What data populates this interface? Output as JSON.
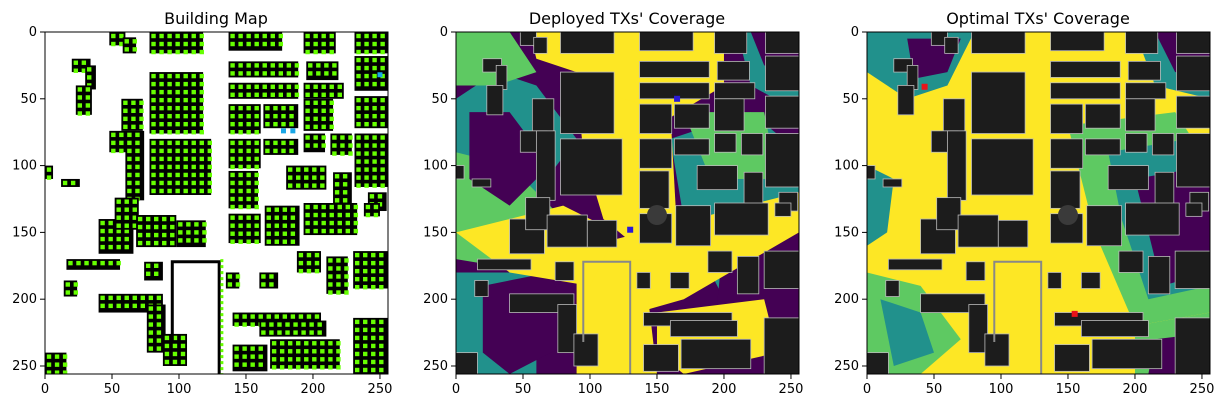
{
  "chart_data": [
    {
      "type": "heatmap",
      "title": "Building Map",
      "xlabel": "",
      "ylabel": "",
      "xlim": [
        0,
        256
      ],
      "ylim": [
        256,
        0
      ],
      "x_ticks": [
        0,
        50,
        100,
        150,
        200,
        250
      ],
      "y_ticks": [
        0,
        50,
        100,
        150,
        200,
        250
      ],
      "layers": [
        "buildings (black)",
        "candidate TX grid (green)",
        "deployed TX (cyan)"
      ],
      "candidate_color": "#66ff00",
      "building_color": "#000000",
      "tx_color": "#1aa7e6",
      "tx_points": [
        [
          250,
          32
        ],
        [
          178,
          74
        ],
        [
          185,
          74
        ]
      ]
    },
    {
      "type": "heatmap",
      "title": "Deployed TXs' Coverage",
      "xlabel": "",
      "ylabel": "",
      "xlim": [
        0,
        256
      ],
      "ylim": [
        256,
        0
      ],
      "x_ticks": [
        0,
        50,
        100,
        150,
        200,
        250
      ],
      "y_ticks": [
        0,
        50,
        100,
        150,
        200,
        250
      ],
      "colormap": [
        "#440154",
        "#21918c",
        "#5ec962",
        "#fde725"
      ],
      "tx_points": [
        [
          165,
          50
        ],
        [
          130,
          148
        ]
      ],
      "tx_color": "#2a1ad6"
    },
    {
      "type": "heatmap",
      "title": "Optimal TXs' Coverage",
      "xlabel": "",
      "ylabel": "",
      "xlim": [
        0,
        256
      ],
      "ylim": [
        256,
        0
      ],
      "x_ticks": [
        0,
        50,
        100,
        150,
        200,
        250
      ],
      "y_ticks": [
        0,
        50,
        100,
        150,
        200,
        250
      ],
      "colormap": [
        "#440154",
        "#21918c",
        "#5ec962",
        "#fde725"
      ],
      "tx_points": [
        [
          43,
          41
        ],
        [
          155,
          211
        ]
      ],
      "tx_color": "#e8141a"
    }
  ]
}
